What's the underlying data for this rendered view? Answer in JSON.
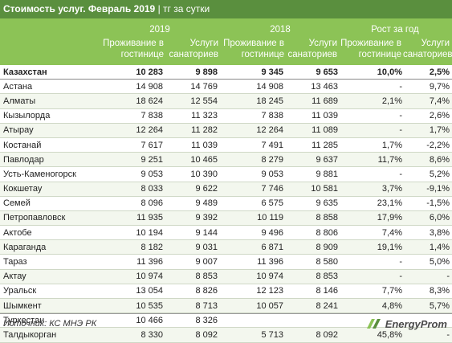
{
  "title": {
    "main": "Стоимость услуг. Февраль 2019",
    "sep": " | ",
    "unit": "тг за сутки"
  },
  "header": {
    "year_2019": "2019",
    "year_2018": "2018",
    "growth": "Рост за год",
    "sub": [
      "Проживание в гостинице",
      "Услуги санаториев",
      "Проживание в гостинице",
      "Услуги санаториев",
      "Проживание в гостинице",
      "Услуги санаториев"
    ]
  },
  "rows": [
    [
      "Казахстан",
      "10 283",
      "9 898",
      "9 345",
      "9 653",
      "10,0%",
      "2,5%"
    ],
    [
      "Астана",
      "14 908",
      "14 769",
      "14 908",
      "13 463",
      "-",
      "9,7%"
    ],
    [
      "Алматы",
      "18 624",
      "12 554",
      "18 245",
      "11 689",
      "2,1%",
      "7,4%"
    ],
    [
      "Кызылорда",
      "7 838",
      "11 323",
      "7 838",
      "11 039",
      "-",
      "2,6%"
    ],
    [
      "Атырау",
      "12 264",
      "11 282",
      "12 264",
      "11 089",
      "-",
      "1,7%"
    ],
    [
      "Костанай",
      "7 617",
      "11 039",
      "7 491",
      "11 285",
      "1,7%",
      "-2,2%"
    ],
    [
      "Павлодар",
      "9 251",
      "10 465",
      "8 279",
      "9 637",
      "11,7%",
      "8,6%"
    ],
    [
      "Усть-Каменогорск",
      "9 053",
      "10 390",
      "9 053",
      "9 881",
      "-",
      "5,2%"
    ],
    [
      "Кокшетау",
      "8 033",
      "9 622",
      "7 746",
      "10 581",
      "3,7%",
      "-9,1%"
    ],
    [
      "Семей",
      "8 096",
      "9 489",
      "6 575",
      "9 635",
      "23,1%",
      "-1,5%"
    ],
    [
      "Петропавловск",
      "11 935",
      "9 392",
      "10 119",
      "8 858",
      "17,9%",
      "6,0%"
    ],
    [
      "Актобе",
      "10 194",
      "9 144",
      "9 496",
      "8 806",
      "7,4%",
      "3,8%"
    ],
    [
      "Караганда",
      "8 182",
      "9 031",
      "6 871",
      "8 909",
      "19,1%",
      "1,4%"
    ],
    [
      "Тараз",
      "11 396",
      "9 007",
      "11 396",
      "8 580",
      "-",
      "5,0%"
    ],
    [
      "Актау",
      "10 974",
      "8 853",
      "10 974",
      "8 853",
      "-",
      "-"
    ],
    [
      "Уральск",
      "13 054",
      "8 826",
      "12 123",
      "8 146",
      "7,7%",
      "8,3%"
    ],
    [
      "Шымкент",
      "10 535",
      "8 713",
      "10 057",
      "8 241",
      "4,8%",
      "5,7%"
    ],
    [
      "Туркестан",
      "10 466",
      "8 326",
      "",
      "",
      "",
      ""
    ],
    [
      "Талдыкорган",
      "8 330",
      "8 092",
      "5 713",
      "8 092",
      "45,8%",
      "-"
    ]
  ],
  "footer": {
    "source": "Источник: КС МНЭ РК",
    "brand": "EnergyProm"
  },
  "colors": {
    "title_bg": "#5a8f3e",
    "header_bg": "#8cc356"
  }
}
